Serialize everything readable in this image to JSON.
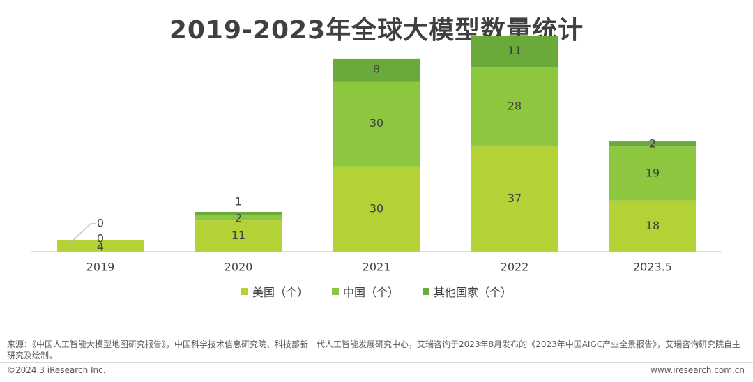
{
  "title": "2019-2023年全球大模型数量统计",
  "chart_data": {
    "type": "bar",
    "stacked": true,
    "categories": [
      "2019",
      "2020",
      "2021",
      "2022",
      "2023.5"
    ],
    "series": [
      {
        "name": "美国（个）",
        "values": [
          4,
          11,
          30,
          37,
          18
        ],
        "color": "#b2d235"
      },
      {
        "name": "中国（个）",
        "values": [
          0,
          2,
          30,
          28,
          19
        ],
        "color": "#8dc63f"
      },
      {
        "name": "其他国家（个）",
        "values": [
          0,
          1,
          8,
          11,
          2
        ],
        "color": "#6aaa3a"
      }
    ],
    "ylim": [
      0,
      80
    ],
    "grid": false,
    "legend": "bottom"
  },
  "footer": {
    "source": "来源：《中国人工智能大模型地图研究报告》，中国科学技术信息研究院、科技部新一代人工智能发展研究中心，艾瑞咨询于2023年8月发布的《2023年中国AIGC产业全景报告》，艾瑞咨询研究院自主研究及绘制。",
    "copyright": "©2024.3 iResearch Inc.",
    "website": "www.iresearch.com.cn"
  }
}
